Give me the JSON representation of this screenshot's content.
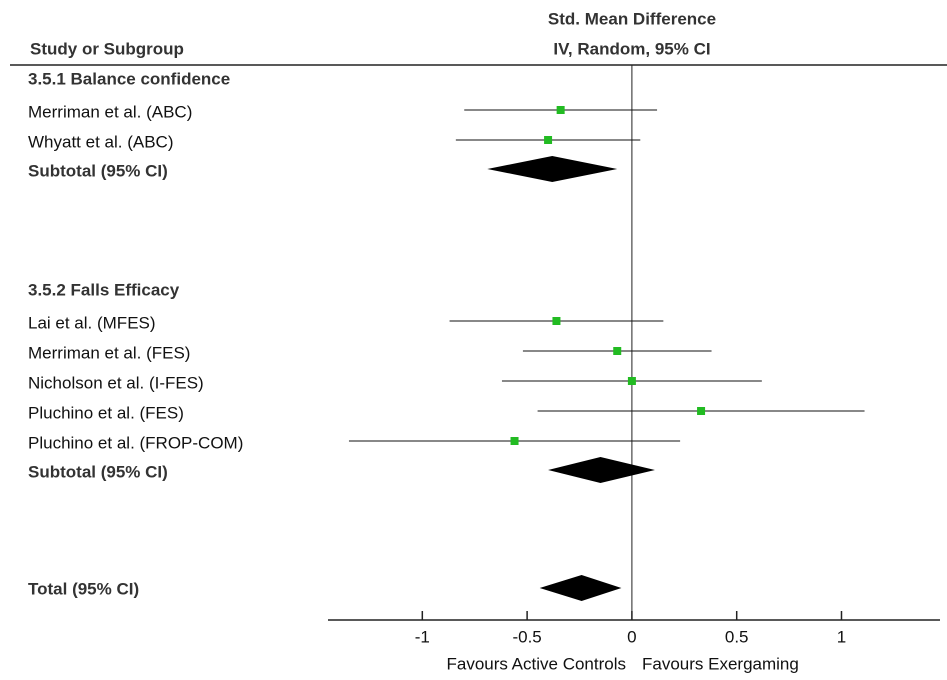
{
  "chart_data": {
    "type": "forest",
    "column_header": "Study or Subgroup",
    "title": "Std. Mean Difference",
    "subtitle": "IV, Random, 95% CI",
    "xlim": [
      -1.45,
      1.47
    ],
    "xticks": [
      -1,
      -0.5,
      0,
      0.5,
      1
    ],
    "color": "#22bb22",
    "groups": [
      {
        "name": "3.5.1 Balance confidence",
        "studies": [
          {
            "name": "Merriman et al. (ABC)",
            "estimate": -0.34,
            "ci": [
              -0.8,
              0.12
            ]
          },
          {
            "name": "Whyatt et al. (ABC)",
            "estimate": -0.4,
            "ci": [
              -0.84,
              0.04
            ]
          }
        ],
        "subtotal": {
          "label": "Subtotal (95% CI)",
          "estimate": -0.38,
          "ci": [
            -0.69,
            -0.07
          ]
        }
      },
      {
        "name": "3.5.2 Falls Efficacy",
        "studies": [
          {
            "name": "Lai et al. (MFES)",
            "estimate": -0.36,
            "ci": [
              -0.87,
              0.15
            ]
          },
          {
            "name": "Merriman et al. (FES)",
            "estimate": -0.07,
            "ci": [
              -0.52,
              0.38
            ]
          },
          {
            "name": "Nicholson et al. (I-FES)",
            "estimate": 0.0,
            "ci": [
              -0.62,
              0.62
            ]
          },
          {
            "name": "Pluchino et al. (FES)",
            "estimate": 0.33,
            "ci": [
              -0.45,
              1.11
            ]
          },
          {
            "name": "Pluchino et al. (FROP-COM)",
            "estimate": -0.56,
            "ci": [
              -1.35,
              0.23
            ]
          }
        ],
        "subtotal": {
          "label": "Subtotal (95% CI)",
          "estimate": -0.15,
          "ci": [
            -0.4,
            0.11
          ]
        }
      }
    ],
    "total": {
      "label": "Total (95% CI)",
      "estimate": -0.24,
      "ci": [
        -0.44,
        -0.05
      ]
    },
    "favours_left": "Favours Active Controls",
    "favours_right": "Favours Exergaming"
  }
}
